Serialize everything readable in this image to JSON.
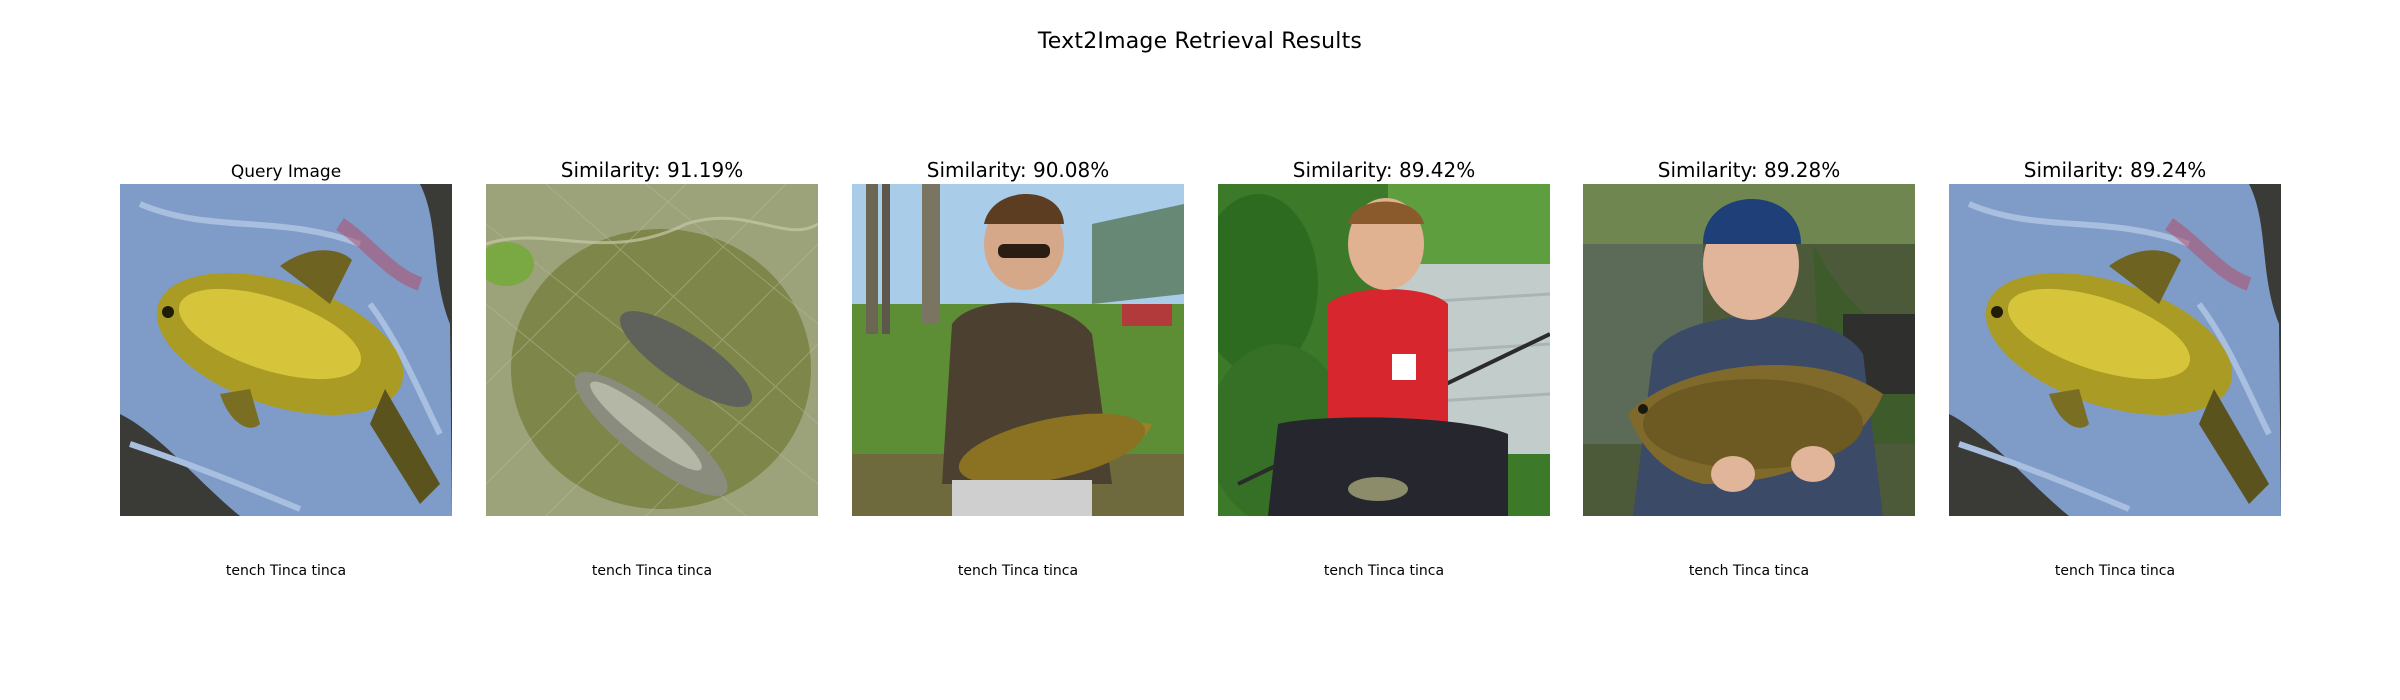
{
  "figure": {
    "title": "Text2Image Retrieval Results"
  },
  "panels": [
    {
      "title": "Query Image",
      "caption": "tench Tinca tinca",
      "image": "fish-on-blue-towel"
    },
    {
      "title": "Similarity: 91.19%",
      "caption": "tench Tinca tinca",
      "image": "two-fish-in-landing-net"
    },
    {
      "title": "Similarity: 90.08%",
      "caption": "tench Tinca tinca",
      "image": "man-with-sunglasses-holding-fish"
    },
    {
      "title": "Similarity: 89.42%",
      "caption": "tench Tinca tinca",
      "image": "boy-in-red-shirt-by-lake"
    },
    {
      "title": "Similarity: 89.28%",
      "caption": "tench Tinca tinca",
      "image": "man-in-beanie-holding-fish"
    },
    {
      "title": "Similarity: 89.24%",
      "caption": "tench Tinca tinca",
      "image": "fish-on-blue-towel"
    }
  ]
}
